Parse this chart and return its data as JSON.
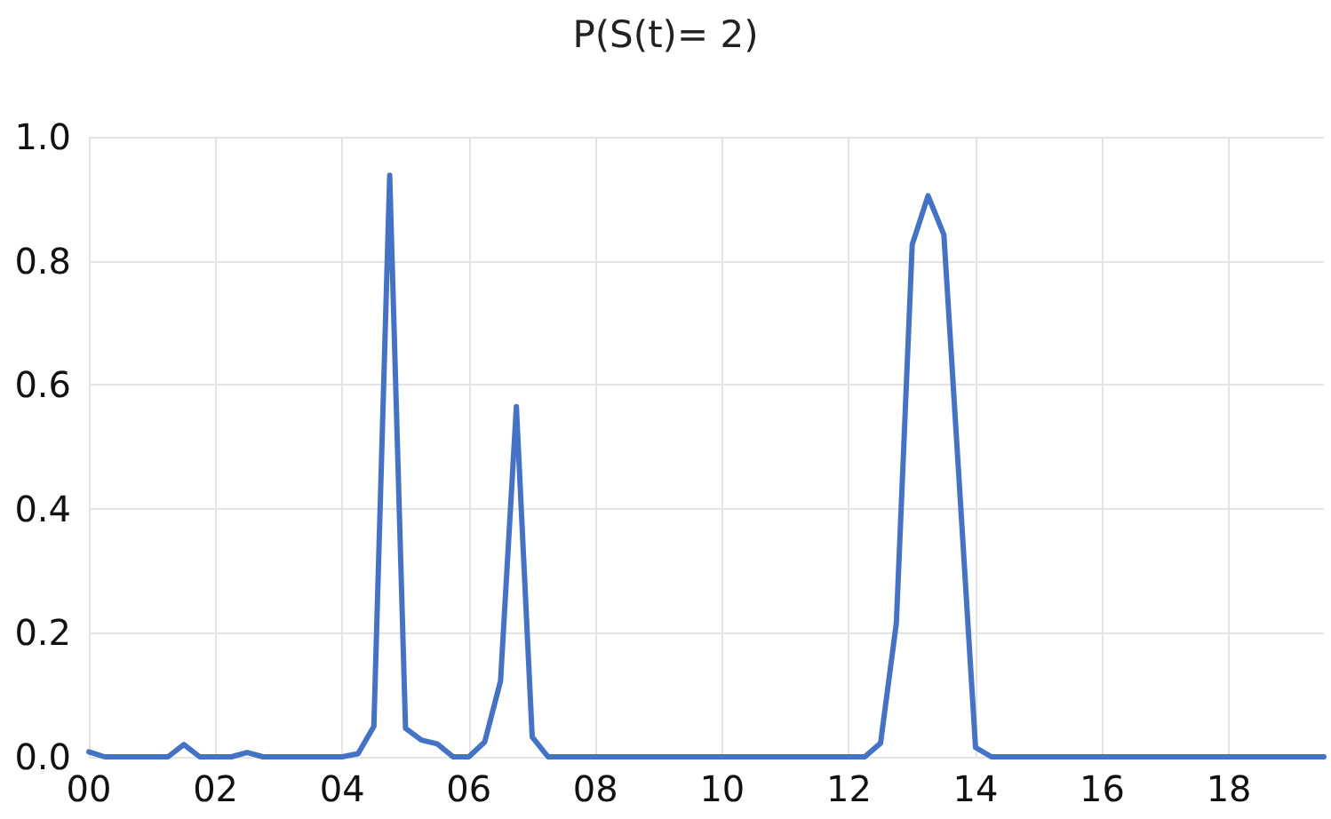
{
  "chart_data": {
    "type": "line",
    "title": "P(S(t)= 2)",
    "x": [
      0,
      0.25,
      1.25,
      1.5,
      1.75,
      2.25,
      2.5,
      2.75,
      4.0,
      4.25,
      4.5,
      4.75,
      5.0,
      5.25,
      5.5,
      5.75,
      6.0,
      6.25,
      6.5,
      6.75,
      7.0,
      7.25,
      12.25,
      12.5,
      12.75,
      13.0,
      13.25,
      13.5,
      13.75,
      14.0,
      14.25,
      19.5
    ],
    "series": [
      {
        "color": "#4472c4",
        "values": [
          0.008,
          0,
          0,
          0.02,
          0,
          0,
          0.007,
          0,
          0,
          0.005,
          0.049,
          0.938,
          0.046,
          0.027,
          0.021,
          0,
          0,
          0.024,
          0.122,
          0.565,
          0.032,
          0,
          0,
          0.022,
          0.216,
          0.826,
          0.905,
          0.842,
          0.43,
          0.015,
          0,
          0
        ]
      }
    ],
    "xlim": [
      0,
      19.5
    ],
    "xticks": [
      {
        "value": 0,
        "label": "00"
      },
      {
        "value": 2,
        "label": "02"
      },
      {
        "value": 4,
        "label": "04"
      },
      {
        "value": 6,
        "label": "06"
      },
      {
        "value": 8,
        "label": "08"
      },
      {
        "value": 10,
        "label": "10"
      },
      {
        "value": 12,
        "label": "12"
      },
      {
        "value": 14,
        "label": "14"
      },
      {
        "value": 16,
        "label": "16"
      },
      {
        "value": 18,
        "label": "18"
      }
    ],
    "ylim": [
      0,
      1.0
    ],
    "yticks": [
      {
        "value": 0,
        "label": "0.0"
      },
      {
        "value": 0.2,
        "label": "0.2"
      },
      {
        "value": 0.4,
        "label": "0.4"
      },
      {
        "value": 0.6,
        "label": "0.6"
      },
      {
        "value": 0.8,
        "label": "0.8"
      },
      {
        "value": 1.0,
        "label": "1.0"
      }
    ],
    "grid": true,
    "marker": "none",
    "line_style": "solid"
  }
}
